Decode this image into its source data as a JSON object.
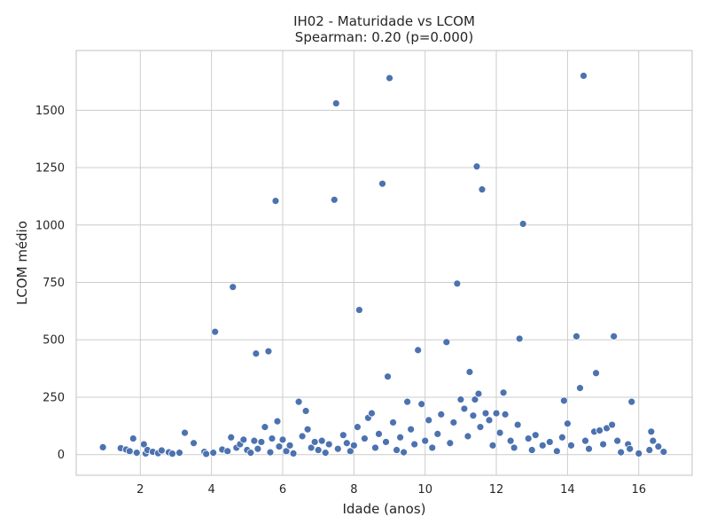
{
  "chart_data": {
    "type": "scatter",
    "title": "IH02 - Maturidade vs LCOM",
    "subtitle": "Spearman: 0.20 (p=0.000)",
    "xlabel": "Idade (anos)",
    "ylabel": "LCOM médio",
    "xlim": [
      0.2,
      17.5
    ],
    "ylim": [
      -90,
      1760
    ],
    "xticks": [
      2,
      4,
      6,
      8,
      10,
      12,
      14,
      16
    ],
    "yticks": [
      0,
      250,
      500,
      750,
      1000,
      1250,
      1500
    ],
    "grid": true,
    "marker_color": "#4c72b0",
    "marker_edge_color": "#ffffff",
    "background": "#ffffff",
    "grid_color": "#cccccc",
    "points": [
      {
        "x": 0.95,
        "y": 32
      },
      {
        "x": 1.45,
        "y": 28
      },
      {
        "x": 1.6,
        "y": 22
      },
      {
        "x": 1.7,
        "y": 15
      },
      {
        "x": 1.8,
        "y": 70
      },
      {
        "x": 1.9,
        "y": 8
      },
      {
        "x": 2.1,
        "y": 45
      },
      {
        "x": 2.15,
        "y": 5
      },
      {
        "x": 2.2,
        "y": 20
      },
      {
        "x": 2.35,
        "y": 12
      },
      {
        "x": 2.5,
        "y": 6
      },
      {
        "x": 2.6,
        "y": 18
      },
      {
        "x": 2.8,
        "y": 10
      },
      {
        "x": 2.9,
        "y": 4
      },
      {
        "x": 3.1,
        "y": 8
      },
      {
        "x": 3.25,
        "y": 95
      },
      {
        "x": 3.5,
        "y": 50
      },
      {
        "x": 3.8,
        "y": 12
      },
      {
        "x": 3.85,
        "y": 3
      },
      {
        "x": 4.05,
        "y": 8
      },
      {
        "x": 4.1,
        "y": 535
      },
      {
        "x": 4.3,
        "y": 22
      },
      {
        "x": 4.45,
        "y": 15
      },
      {
        "x": 4.55,
        "y": 75
      },
      {
        "x": 4.6,
        "y": 730
      },
      {
        "x": 4.7,
        "y": 30
      },
      {
        "x": 4.8,
        "y": 45
      },
      {
        "x": 4.9,
        "y": 65
      },
      {
        "x": 5.0,
        "y": 20
      },
      {
        "x": 5.1,
        "y": 8
      },
      {
        "x": 5.2,
        "y": 60
      },
      {
        "x": 5.25,
        "y": 440
      },
      {
        "x": 5.3,
        "y": 25
      },
      {
        "x": 5.4,
        "y": 55
      },
      {
        "x": 5.5,
        "y": 120
      },
      {
        "x": 5.6,
        "y": 450
      },
      {
        "x": 5.65,
        "y": 10
      },
      {
        "x": 5.7,
        "y": 70
      },
      {
        "x": 5.8,
        "y": 1105
      },
      {
        "x": 5.85,
        "y": 145
      },
      {
        "x": 5.9,
        "y": 35
      },
      {
        "x": 6.0,
        "y": 65
      },
      {
        "x": 6.1,
        "y": 15
      },
      {
        "x": 6.2,
        "y": 40
      },
      {
        "x": 6.3,
        "y": 5
      },
      {
        "x": 6.45,
        "y": 230
      },
      {
        "x": 6.55,
        "y": 80
      },
      {
        "x": 6.65,
        "y": 190
      },
      {
        "x": 6.7,
        "y": 110
      },
      {
        "x": 6.8,
        "y": 30
      },
      {
        "x": 6.9,
        "y": 55
      },
      {
        "x": 7.0,
        "y": 20
      },
      {
        "x": 7.1,
        "y": 60
      },
      {
        "x": 7.2,
        "y": 8
      },
      {
        "x": 7.3,
        "y": 45
      },
      {
        "x": 7.45,
        "y": 1110
      },
      {
        "x": 7.5,
        "y": 1530
      },
      {
        "x": 7.55,
        "y": 25
      },
      {
        "x": 7.7,
        "y": 85
      },
      {
        "x": 7.8,
        "y": 50
      },
      {
        "x": 7.9,
        "y": 15
      },
      {
        "x": 8.0,
        "y": 40
      },
      {
        "x": 8.1,
        "y": 120
      },
      {
        "x": 8.15,
        "y": 630
      },
      {
        "x": 8.3,
        "y": 70
      },
      {
        "x": 8.4,
        "y": 160
      },
      {
        "x": 8.5,
        "y": 180
      },
      {
        "x": 8.6,
        "y": 30
      },
      {
        "x": 8.7,
        "y": 90
      },
      {
        "x": 8.8,
        "y": 1180
      },
      {
        "x": 8.9,
        "y": 55
      },
      {
        "x": 8.95,
        "y": 340
      },
      {
        "x": 9.0,
        "y": 1640
      },
      {
        "x": 9.1,
        "y": 140
      },
      {
        "x": 9.2,
        "y": 20
      },
      {
        "x": 9.3,
        "y": 75
      },
      {
        "x": 9.4,
        "y": 10
      },
      {
        "x": 9.5,
        "y": 230
      },
      {
        "x": 9.6,
        "y": 110
      },
      {
        "x": 9.7,
        "y": 45
      },
      {
        "x": 9.8,
        "y": 455
      },
      {
        "x": 9.9,
        "y": 220
      },
      {
        "x": 10.0,
        "y": 60
      },
      {
        "x": 10.1,
        "y": 150
      },
      {
        "x": 10.2,
        "y": 30
      },
      {
        "x": 10.35,
        "y": 90
      },
      {
        "x": 10.45,
        "y": 175
      },
      {
        "x": 10.6,
        "y": 490
      },
      {
        "x": 10.7,
        "y": 50
      },
      {
        "x": 10.8,
        "y": 140
      },
      {
        "x": 10.9,
        "y": 745
      },
      {
        "x": 11.0,
        "y": 240
      },
      {
        "x": 11.1,
        "y": 200
      },
      {
        "x": 11.2,
        "y": 80
      },
      {
        "x": 11.25,
        "y": 360
      },
      {
        "x": 11.35,
        "y": 170
      },
      {
        "x": 11.4,
        "y": 240
      },
      {
        "x": 11.45,
        "y": 1255
      },
      {
        "x": 11.5,
        "y": 265
      },
      {
        "x": 11.55,
        "y": 120
      },
      {
        "x": 11.6,
        "y": 1155
      },
      {
        "x": 11.7,
        "y": 180
      },
      {
        "x": 11.8,
        "y": 150
      },
      {
        "x": 11.9,
        "y": 40
      },
      {
        "x": 12.0,
        "y": 180
      },
      {
        "x": 12.1,
        "y": 95
      },
      {
        "x": 12.2,
        "y": 270
      },
      {
        "x": 12.25,
        "y": 175
      },
      {
        "x": 12.4,
        "y": 60
      },
      {
        "x": 12.5,
        "y": 30
      },
      {
        "x": 12.6,
        "y": 130
      },
      {
        "x": 12.65,
        "y": 505
      },
      {
        "x": 12.75,
        "y": 1005
      },
      {
        "x": 12.9,
        "y": 70
      },
      {
        "x": 13.0,
        "y": 20
      },
      {
        "x": 13.1,
        "y": 85
      },
      {
        "x": 13.3,
        "y": 40
      },
      {
        "x": 13.5,
        "y": 55
      },
      {
        "x": 13.7,
        "y": 15
      },
      {
        "x": 13.85,
        "y": 75
      },
      {
        "x": 13.9,
        "y": 235
      },
      {
        "x": 14.0,
        "y": 135
      },
      {
        "x": 14.1,
        "y": 40
      },
      {
        "x": 14.25,
        "y": 515
      },
      {
        "x": 14.35,
        "y": 290
      },
      {
        "x": 14.45,
        "y": 1650
      },
      {
        "x": 14.5,
        "y": 60
      },
      {
        "x": 14.6,
        "y": 25
      },
      {
        "x": 14.75,
        "y": 100
      },
      {
        "x": 14.8,
        "y": 355
      },
      {
        "x": 14.9,
        "y": 105
      },
      {
        "x": 15.0,
        "y": 45
      },
      {
        "x": 15.1,
        "y": 115
      },
      {
        "x": 15.25,
        "y": 130
      },
      {
        "x": 15.3,
        "y": 515
      },
      {
        "x": 15.4,
        "y": 60
      },
      {
        "x": 15.5,
        "y": 10
      },
      {
        "x": 15.7,
        "y": 45
      },
      {
        "x": 15.75,
        "y": 25
      },
      {
        "x": 15.8,
        "y": 230
      },
      {
        "x": 16.0,
        "y": 5
      },
      {
        "x": 16.3,
        "y": 20
      },
      {
        "x": 16.35,
        "y": 100
      },
      {
        "x": 16.4,
        "y": 60
      },
      {
        "x": 16.55,
        "y": 35
      },
      {
        "x": 16.7,
        "y": 12
      }
    ]
  }
}
